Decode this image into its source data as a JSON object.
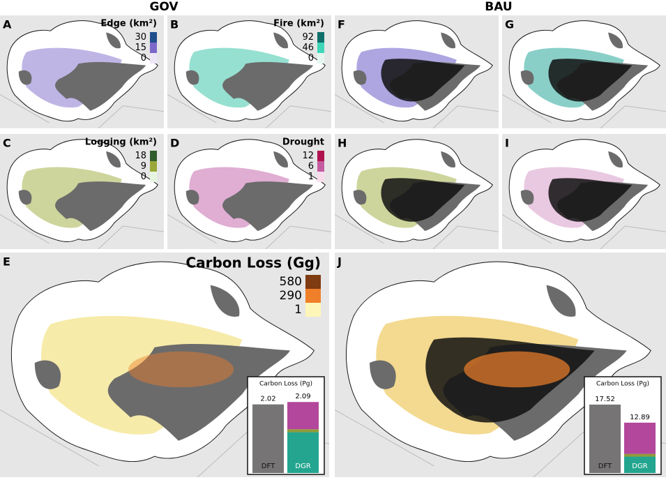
{
  "columns": [
    "GOV",
    "BAU"
  ],
  "panels": [
    {
      "letter": "A",
      "legend": {
        "title": "Edge (km²)",
        "labels": [
          30,
          15,
          0
        ],
        "colors": [
          "#1f4e8c",
          "#7b68c8",
          "#ece6f7"
        ]
      }
    },
    {
      "letter": "B",
      "legend": {
        "title": "Fire (km²)",
        "labels": [
          92,
          46,
          0
        ],
        "colors": [
          "#0f6f6a",
          "#3fd6b8",
          "#e3f7ef"
        ]
      }
    },
    {
      "letter": "F"
    },
    {
      "letter": "G"
    },
    {
      "letter": "C",
      "legend": {
        "title": "Logging (km²)",
        "labels": [
          18,
          9,
          0
        ],
        "colors": [
          "#2f5d2b",
          "#9aa83a",
          "#e6f5e0"
        ]
      }
    },
    {
      "letter": "D",
      "legend": {
        "title": "Drought",
        "labels": [
          12,
          6,
          1
        ],
        "colors": [
          "#b0124f",
          "#c45ca0",
          "#f7dcec"
        ]
      }
    },
    {
      "letter": "H"
    },
    {
      "letter": "I"
    },
    {
      "letter": "E",
      "legend": {
        "title": "Carbon Loss (Gg)",
        "labels": [
          580,
          290,
          1
        ],
        "colors": [
          "#7f3b12",
          "#f07f2a",
          "#fdf6b8"
        ]
      },
      "inset": {
        "title": "Carbon Loss (Pg)",
        "ylim": [
          0,
          2.3
        ],
        "bars": [
          {
            "label": "DFT",
            "segments": [
              {
                "value": 2.02,
                "color": "#767474"
              }
            ]
          },
          {
            "label": "DGR",
            "total": 2.09,
            "segments": [
              {
                "value": 1.2,
                "color": "#23a58f"
              },
              {
                "value": 0.09,
                "color": "#8f9b3a"
              },
              {
                "value": 0.8,
                "color": "#b2479b"
              }
            ]
          }
        ]
      }
    },
    {
      "letter": "J",
      "inset": {
        "title": "Carbon Loss (Pg)",
        "ylim": [
          0,
          20
        ],
        "bars": [
          {
            "label": "DFT",
            "segments": [
              {
                "value": 17.52,
                "color": "#767474"
              }
            ]
          },
          {
            "label": "DGR",
            "total": 12.89,
            "segments": [
              {
                "value": 4.19,
                "color": "#23a58f"
              },
              {
                "value": 0.7,
                "color": "#8f9b3a"
              },
              {
                "value": 8.0,
                "color": "#b2479b"
              }
            ]
          }
        ]
      }
    }
  ]
}
